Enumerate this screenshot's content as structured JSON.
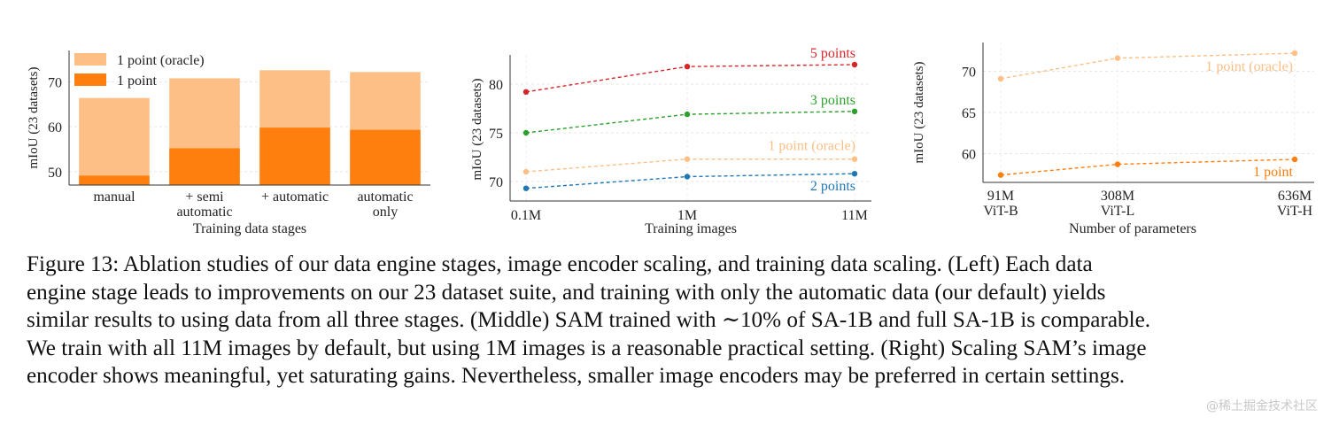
{
  "chart_data": [
    {
      "type": "bar",
      "stacked_overlay": true,
      "categories": [
        "manual",
        "+ semi\nautomatic",
        "+ automatic",
        "automatic\nonly"
      ],
      "series": [
        {
          "name": "1 point (oracle)",
          "color": "#fdbf85",
          "values": [
            66.4,
            70.8,
            72.6,
            72.2
          ]
        },
        {
          "name": "1 point",
          "color": "#ff7f0e",
          "values": [
            49.1,
            55.2,
            59.8,
            59.3
          ]
        }
      ],
      "title": "",
      "xlabel": "Training data stages",
      "ylabel": "mIoU (23 datasets)",
      "yticks": [
        50,
        60,
        70
      ],
      "ylim": [
        47,
        77
      ],
      "grid": true,
      "legend": "top-left"
    },
    {
      "type": "line",
      "x": [
        "0.1M",
        "1M",
        "11M"
      ],
      "series": [
        {
          "name": "5 points",
          "color": "#d62728",
          "values": [
            79.2,
            81.8,
            82.0
          ]
        },
        {
          "name": "3 points",
          "color": "#2ca02c",
          "values": [
            75.0,
            76.9,
            77.2
          ]
        },
        {
          "name": "1 point (oracle)",
          "color": "#fdbf85",
          "values": [
            71.0,
            72.3,
            72.3
          ]
        },
        {
          "name": "2 points",
          "color": "#1f77b4",
          "values": [
            69.3,
            70.5,
            70.8
          ]
        }
      ],
      "title": "",
      "xlabel": "Training images",
      "ylabel": "mIoU (23 datasets)",
      "yticks": [
        70,
        75,
        80
      ],
      "ylim": [
        68,
        83
      ],
      "grid": true,
      "legend": "inline labels"
    },
    {
      "type": "line",
      "x": [
        "91M\nViT-B",
        "308M\nViT-L",
        "636M\nViT-H"
      ],
      "series": [
        {
          "name": "1 point (oracle)",
          "color": "#fdbf85",
          "values": [
            69.1,
            71.6,
            72.2
          ]
        },
        {
          "name": "1 point",
          "color": "#ff7f0e",
          "values": [
            57.4,
            58.7,
            59.3
          ]
        }
      ],
      "title": "",
      "xlabel": "Number of parameters",
      "ylabel": "mIoU (23 datasets)",
      "yticks": [
        60,
        65,
        70
      ],
      "ylim": [
        56.5,
        73.5
      ],
      "grid": true,
      "legend": "inline labels"
    }
  ],
  "caption": {
    "lines": [
      "Figure 13: Ablation studies of our data engine stages, image encoder scaling, and training data scaling. (Left) Each data",
      "engine stage leads to improvements on our 23 dataset suite, and training with only the automatic data (our default) yields",
      "similar results to using data from all three stages. (Middle) SAM trained with ∼10% of SA-1B and full SA-1B is comparable.",
      "We train with all 11M images by default, but using 1M images is a reasonable practical setting. (Right) Scaling SAM’s image",
      "encoder shows meaningful, yet saturating gains. Nevertheless, smaller image encoders may be preferred in certain settings."
    ]
  },
  "watermark": "@稀土掘金技术社区"
}
